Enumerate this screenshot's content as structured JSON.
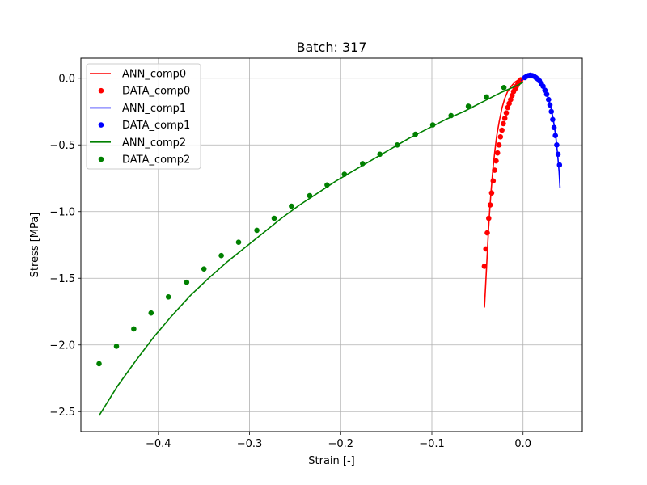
{
  "chart_data": {
    "type": "line",
    "title": "Batch: 317",
    "xlabel": "Strain [-]",
    "ylabel": "Stress [MPa]",
    "xlim": [
      -0.485,
      0.065
    ],
    "ylim": [
      -2.65,
      0.15
    ],
    "x_ticks": [
      -0.4,
      -0.3,
      -0.2,
      -0.1,
      0.0
    ],
    "x_tick_labels": [
      "−0.4",
      "−0.3",
      "−0.2",
      "−0.1",
      "0.0"
    ],
    "y_ticks": [
      0.0,
      -0.5,
      -1.0,
      -1.5,
      -2.0,
      -2.5
    ],
    "y_tick_labels": [
      "0.0",
      "−0.5",
      "−1.0",
      "−1.5",
      "−2.0",
      "−2.5"
    ],
    "grid": true,
    "legend_position": "upper-left",
    "series": [
      {
        "name": "ANN_comp0",
        "kind": "line",
        "color": "#ff0000",
        "points": [
          [
            -0.0423,
            -1.72
          ],
          [
            -0.041,
            -1.55
          ],
          [
            -0.0395,
            -1.35
          ],
          [
            -0.038,
            -1.15
          ],
          [
            -0.0365,
            -0.98
          ],
          [
            -0.035,
            -0.84
          ],
          [
            -0.033,
            -0.68
          ],
          [
            -0.031,
            -0.55
          ],
          [
            -0.029,
            -0.44
          ],
          [
            -0.026,
            -0.32
          ],
          [
            -0.023,
            -0.22
          ],
          [
            -0.02,
            -0.15
          ],
          [
            -0.017,
            -0.1
          ],
          [
            -0.013,
            -0.06
          ],
          [
            -0.009,
            -0.03
          ],
          [
            -0.005,
            -0.012
          ],
          [
            -0.001,
            0.0
          ]
        ]
      },
      {
        "name": "DATA_comp0",
        "kind": "scatter",
        "color": "#ff0000",
        "points": [
          [
            -0.0424,
            -1.41
          ],
          [
            -0.0408,
            -1.28
          ],
          [
            -0.0392,
            -1.16
          ],
          [
            -0.0376,
            -1.05
          ],
          [
            -0.036,
            -0.95
          ],
          [
            -0.0344,
            -0.86
          ],
          [
            -0.0328,
            -0.77
          ],
          [
            -0.0312,
            -0.69
          ],
          [
            -0.0296,
            -0.62
          ],
          [
            -0.028,
            -0.56
          ],
          [
            -0.0264,
            -0.5
          ],
          [
            -0.0248,
            -0.44
          ],
          [
            -0.0232,
            -0.39
          ],
          [
            -0.0216,
            -0.34
          ],
          [
            -0.02,
            -0.3
          ],
          [
            -0.0184,
            -0.26
          ],
          [
            -0.0168,
            -0.22
          ],
          [
            -0.0152,
            -0.19
          ],
          [
            -0.0136,
            -0.16
          ],
          [
            -0.012,
            -0.13
          ],
          [
            -0.0104,
            -0.1
          ],
          [
            -0.0088,
            -0.08
          ],
          [
            -0.0072,
            -0.06
          ],
          [
            -0.0056,
            -0.04
          ],
          [
            -0.004,
            -0.025
          ],
          [
            -0.0024,
            -0.012
          ]
        ]
      },
      {
        "name": "ANN_comp1",
        "kind": "line",
        "color": "#0000ff",
        "points": [
          [
            -0.002,
            -0.02
          ],
          [
            0.0,
            0.0
          ],
          [
            0.003,
            0.018
          ],
          [
            0.006,
            0.025
          ],
          [
            0.01,
            0.022
          ],
          [
            0.014,
            0.01
          ],
          [
            0.018,
            -0.01
          ],
          [
            0.022,
            -0.05
          ],
          [
            0.026,
            -0.11
          ],
          [
            0.03,
            -0.2
          ],
          [
            0.033,
            -0.3
          ],
          [
            0.036,
            -0.44
          ],
          [
            0.038,
            -0.58
          ],
          [
            0.0395,
            -0.7
          ],
          [
            0.0405,
            -0.82
          ]
        ]
      },
      {
        "name": "DATA_comp1",
        "kind": "scatter",
        "color": "#0000ff",
        "points": [
          [
            0.002,
            0.005
          ],
          [
            0.004,
            0.015
          ],
          [
            0.006,
            0.02
          ],
          [
            0.008,
            0.022
          ],
          [
            0.01,
            0.02
          ],
          [
            0.012,
            0.015
          ],
          [
            0.014,
            0.005
          ],
          [
            0.016,
            -0.005
          ],
          [
            0.018,
            -0.02
          ],
          [
            0.02,
            -0.04
          ],
          [
            0.022,
            -0.06
          ],
          [
            0.024,
            -0.09
          ],
          [
            0.026,
            -0.12
          ],
          [
            0.028,
            -0.16
          ],
          [
            0.0295,
            -0.2
          ],
          [
            0.031,
            -0.25
          ],
          [
            0.0325,
            -0.31
          ],
          [
            0.034,
            -0.37
          ],
          [
            0.0355,
            -0.43
          ],
          [
            0.037,
            -0.5
          ],
          [
            0.0385,
            -0.57
          ],
          [
            0.04,
            -0.65
          ]
        ]
      },
      {
        "name": "ANN_comp2",
        "kind": "line",
        "color": "#008000",
        "points": [
          [
            -0.465,
            -2.53
          ],
          [
            -0.445,
            -2.31
          ],
          [
            -0.425,
            -2.12
          ],
          [
            -0.405,
            -1.94
          ],
          [
            -0.385,
            -1.78
          ],
          [
            -0.365,
            -1.63
          ],
          [
            -0.345,
            -1.5
          ],
          [
            -0.325,
            -1.38
          ],
          [
            -0.305,
            -1.27
          ],
          [
            -0.285,
            -1.16
          ],
          [
            -0.265,
            -1.05
          ],
          [
            -0.245,
            -0.95
          ],
          [
            -0.225,
            -0.86
          ],
          [
            -0.205,
            -0.77
          ],
          [
            -0.185,
            -0.69
          ],
          [
            -0.165,
            -0.61
          ],
          [
            -0.145,
            -0.53
          ],
          [
            -0.125,
            -0.45
          ],
          [
            -0.105,
            -0.38
          ],
          [
            -0.085,
            -0.31
          ],
          [
            -0.065,
            -0.25
          ],
          [
            -0.045,
            -0.18
          ],
          [
            -0.025,
            -0.11
          ],
          [
            -0.005,
            -0.05
          ],
          [
            0.0,
            -0.03
          ]
        ]
      },
      {
        "name": "DATA_comp2",
        "kind": "scatter",
        "color": "#008000",
        "points": [
          [
            -0.465,
            -2.14
          ],
          [
            -0.446,
            -2.01
          ],
          [
            -0.427,
            -1.88
          ],
          [
            -0.408,
            -1.76
          ],
          [
            -0.389,
            -1.64
          ],
          [
            -0.369,
            -1.53
          ],
          [
            -0.35,
            -1.43
          ],
          [
            -0.331,
            -1.33
          ],
          [
            -0.312,
            -1.23
          ],
          [
            -0.292,
            -1.14
          ],
          [
            -0.273,
            -1.05
          ],
          [
            -0.254,
            -0.96
          ],
          [
            -0.234,
            -0.88
          ],
          [
            -0.215,
            -0.8
          ],
          [
            -0.196,
            -0.72
          ],
          [
            -0.176,
            -0.64
          ],
          [
            -0.157,
            -0.57
          ],
          [
            -0.138,
            -0.5
          ],
          [
            -0.118,
            -0.42
          ],
          [
            -0.099,
            -0.35
          ],
          [
            -0.079,
            -0.28
          ],
          [
            -0.06,
            -0.21
          ],
          [
            -0.04,
            -0.14
          ],
          [
            -0.021,
            -0.07
          ]
        ]
      }
    ]
  }
}
